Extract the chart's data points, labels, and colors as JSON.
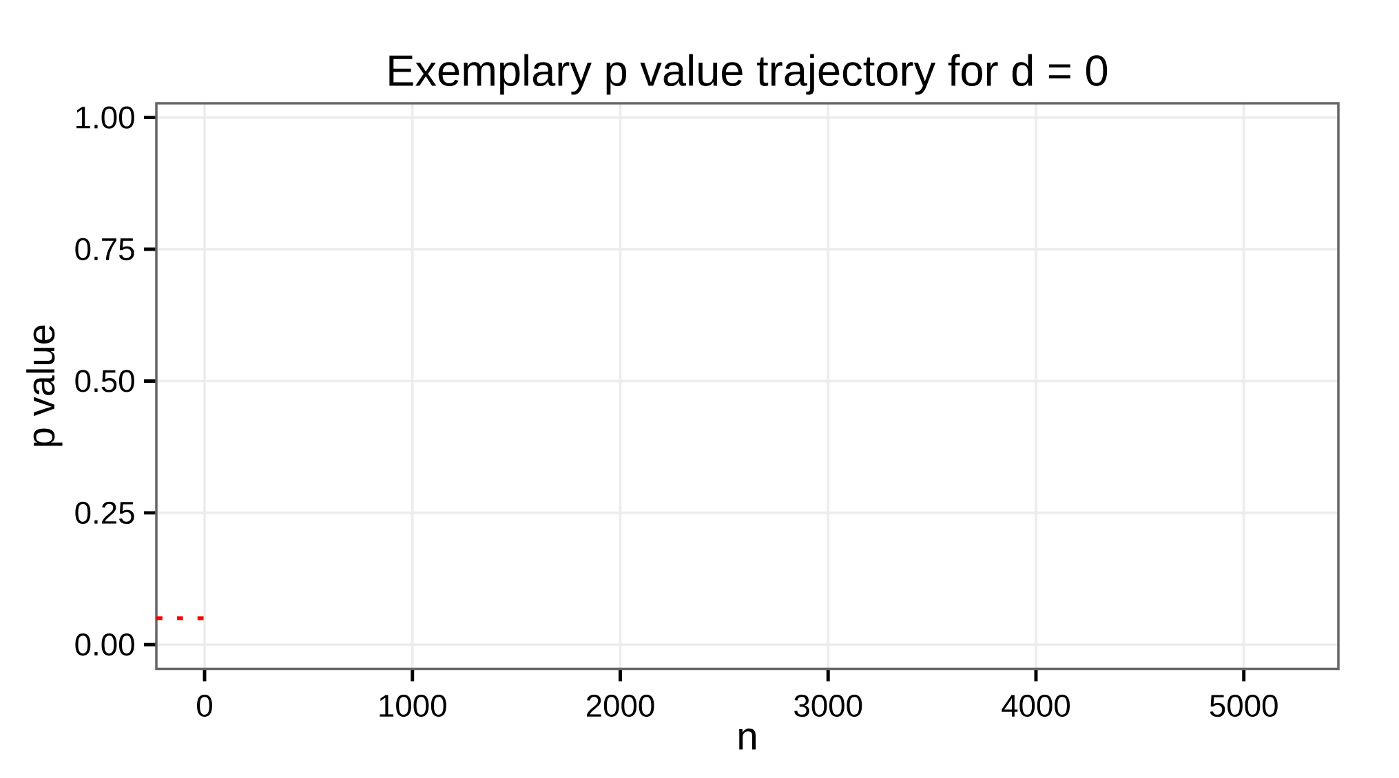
{
  "chart_data": {
    "type": "line",
    "title": "Exemplary p value trajectory for d = 0",
    "xlabel": "n",
    "ylabel": "p value",
    "xlim": [
      -232,
      5455
    ],
    "ylim": [
      -0.046,
      1.027
    ],
    "xticks": [
      0,
      1000,
      2000,
      3000,
      4000,
      5000
    ],
    "yticks": [
      {
        "value": 0,
        "label": "0.00"
      },
      {
        "value": 0.25,
        "label": "0.25"
      },
      {
        "value": 0.5,
        "label": "0.50"
      },
      {
        "value": 0.75,
        "label": "0.75"
      },
      {
        "value": 1,
        "label": "1.00"
      }
    ],
    "grid": true,
    "line_style": "dotted",
    "series": [
      {
        "color": "#ff0000",
        "x": [
          -232,
          0
        ],
        "values": [
          0.05,
          0.05
        ]
      }
    ]
  }
}
